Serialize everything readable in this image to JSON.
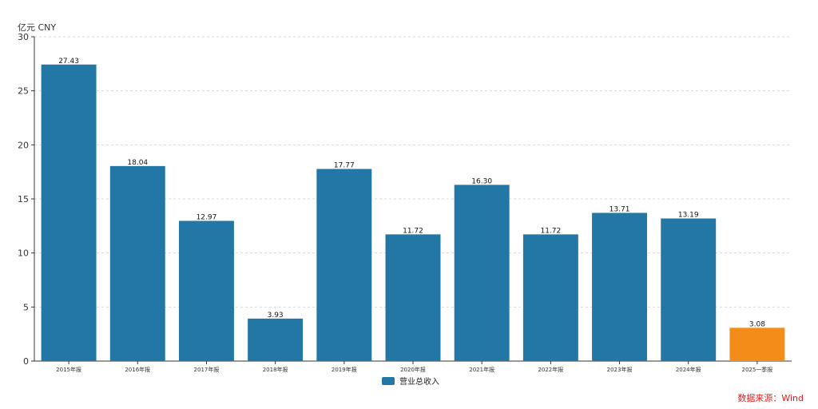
{
  "chart_data": {
    "type": "bar",
    "unit_label": "亿元  CNY",
    "categories": [
      "2015年报",
      "2016年报",
      "2017年报",
      "2018年报",
      "2019年报",
      "2020年报",
      "2021年报",
      "2022年报",
      "2023年报",
      "2024年报",
      "2025一季报"
    ],
    "values": [
      27.43,
      18.04,
      12.97,
      3.93,
      17.77,
      11.72,
      16.3,
      11.72,
      13.71,
      13.19,
      3.08
    ],
    "value_labels": [
      "27.43",
      "18.04",
      "12.97",
      "3.93",
      "17.77",
      "11.72",
      "16.30",
      "11.72",
      "13.71",
      "13.19",
      "3.08"
    ],
    "series": [
      {
        "name": "营业总收入"
      }
    ],
    "ylim": [
      0,
      30
    ],
    "yticks": [
      0,
      5,
      10,
      15,
      20,
      25,
      30
    ],
    "grid": true,
    "legend_position": "bottom-center",
    "colors": {
      "bar": "#2277a4",
      "highlight": "#f48c1a",
      "highlight_indices": [
        10
      ]
    }
  },
  "source": {
    "text": "数据来源：Wind",
    "color": "#e02020"
  }
}
